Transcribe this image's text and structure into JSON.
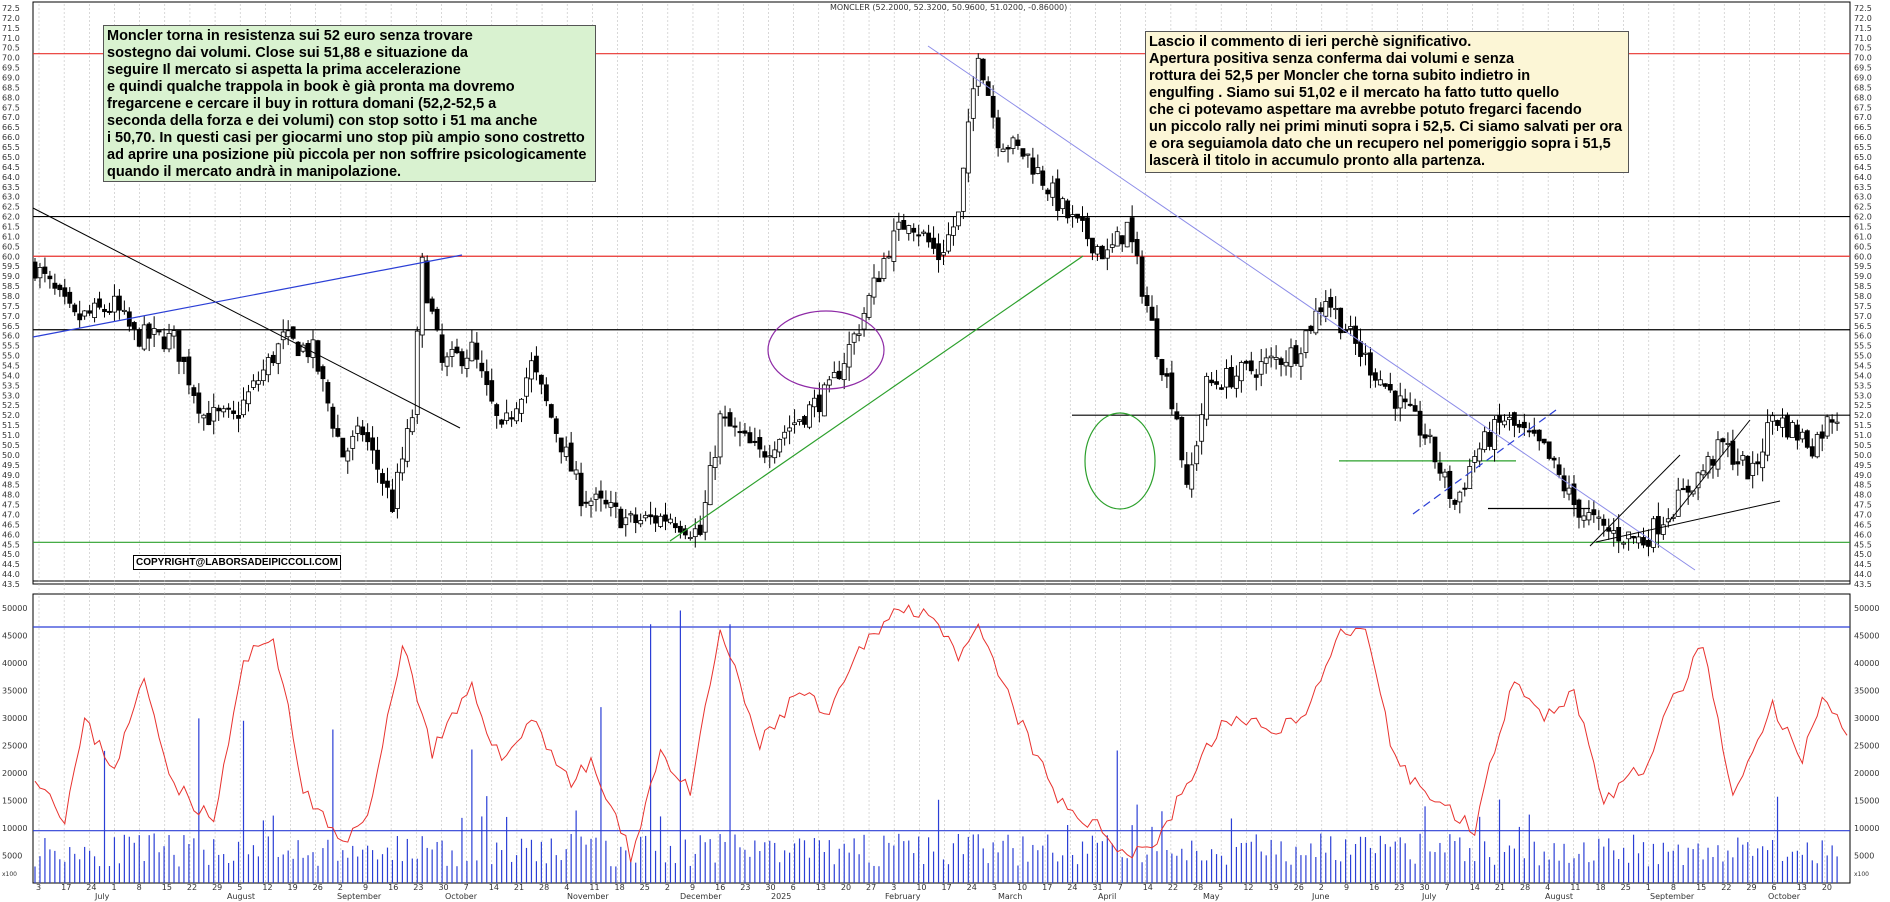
{
  "chart_title": "MONCLER (52.2000, 52.3200, 50.9600, 51.0200, -0.86000)",
  "copyright": "COPYRIGHT@LABORSADEIPICCOLI.COM",
  "note_left": [
    "Moncler torna in resistenza sui 52 euro senza trovare",
    "sostegno dai volumi. Close sui 51,88 e situazione da",
    "seguire Il mercato si aspetta la prima accelerazione",
    "e quindi qualche trappola in book è già pronta ma dovremo",
    "fregarcene e cercare il buy in rottura domani (52,2-52,5 a",
    "seconda della forza e dei volumi) con stop sotto i 51 ma anche",
    "i 50,70. In questi casi per giocarmi uno stop più ampio sono costretto",
    "ad aprire una posizione più piccola per non soffrire psicologicamente",
    "quando il mercato andrà in manipolazione."
  ],
  "note_right": [
    "Lascio il commento di ieri perchè significativo.",
    "Apertura positiva senza conferma dai volumi e senza",
    "rottura dei 52,5 per Moncler che torna subito indietro in",
    "engulfing . Siamo sui 51,02 e il mercato ha fatto tutto quello",
    "che ci potevamo aspettare ma avrebbe potuto fregarci facendo",
    "un piccolo rally nei primi minuti sopra i 52,5. Ci siamo salvati per ora",
    "e ora seguiamola dato che un recupero nel pomeriggio sopra i 51,5",
    "lascerà il titolo in accumulo pronto alla partenza."
  ],
  "volume_corner_label": "x100",
  "colors": {
    "resistance": "#e8322e",
    "support": "#2ca02c",
    "trend_blue": "#2b3fd6",
    "trend_light": "#8c8ce8",
    "volume_bars": "#2b3fd6",
    "volume_ma": "#e8322e",
    "ellipse_purple": "#8e2aa6",
    "ellipse_green": "#2ca02c",
    "grid": "#bfbfbf",
    "note_left_bg": "#d9f2d0",
    "note_right_bg": "#fcf6d6"
  },
  "chart_data": [
    {
      "type": "candlestick",
      "title": "MONCLER (52.2000, 52.3200, 50.9600, 51.0200, -0.86000)",
      "ylim": [
        43.5,
        72.5
      ],
      "y_tick_step": 0.5,
      "x_day_ticks": [
        "3",
        "17",
        "24",
        "1",
        "8",
        "15",
        "22",
        "29",
        "5",
        "12",
        "19",
        "26",
        "2",
        "9",
        "16",
        "23",
        "30",
        "7",
        "14",
        "21",
        "28",
        "4",
        "11",
        "18",
        "25",
        "2",
        "9",
        "16",
        "23",
        "30",
        "6",
        "13",
        "20",
        "27",
        "3",
        "10",
        "17",
        "24",
        "3",
        "10",
        "17",
        "24",
        "31",
        "7",
        "14",
        "22",
        "28",
        "5",
        "12",
        "19",
        "26",
        "2",
        "9",
        "16",
        "23",
        "30",
        "7",
        "14",
        "21",
        "28",
        "4",
        "11",
        "18",
        "25",
        "1",
        "8",
        "15",
        "22",
        "29",
        "6",
        "13",
        "20"
      ],
      "x_month_labels": [
        "July",
        "August",
        "September",
        "October",
        "November",
        "December",
        "2025",
        "February",
        "March",
        "April",
        "May",
        "June",
        "July",
        "August",
        "September",
        "October"
      ],
      "horizontal_levels": [
        {
          "price": 70.2,
          "kind": "resistance"
        },
        {
          "price": 62.0,
          "kind": "resistance-black"
        },
        {
          "price": 60.0,
          "kind": "resistance"
        },
        {
          "price": 56.3,
          "kind": "level-black"
        },
        {
          "price": 52.0,
          "kind": "level-black"
        },
        {
          "price": 49.7,
          "kind": "support-green"
        },
        {
          "price": 47.3,
          "kind": "level-black"
        },
        {
          "price": 45.6,
          "kind": "support"
        }
      ],
      "anchors": [
        [
          0,
          59.5
        ],
        [
          8,
          56.8
        ],
        [
          16,
          57.5
        ],
        [
          20,
          56.0
        ],
        [
          28,
          55.8
        ],
        [
          34,
          52.0
        ],
        [
          40,
          51.8
        ],
        [
          50,
          55.8
        ],
        [
          56,
          55.2
        ],
        [
          62,
          50.0
        ],
        [
          66,
          51.2
        ],
        [
          72,
          47.5
        ],
        [
          76,
          52.0
        ],
        [
          78,
          59.5
        ],
        [
          82,
          54.5
        ],
        [
          88,
          55.3
        ],
        [
          94,
          51.0
        ],
        [
          100,
          54.5
        ],
        [
          110,
          48.0
        ],
        [
          120,
          46.6
        ],
        [
          128,
          46.9
        ],
        [
          134,
          46.0
        ],
        [
          138,
          51.8
        ],
        [
          146,
          50.0
        ],
        [
          150,
          51.0
        ],
        [
          160,
          53.2
        ],
        [
          166,
          56.5
        ],
        [
          172,
          60.5
        ],
        [
          176,
          62.0
        ],
        [
          182,
          60.0
        ],
        [
          186,
          62.0
        ],
        [
          190,
          70.5
        ],
        [
          194,
          66.0
        ],
        [
          200,
          65.0
        ],
        [
          208,
          62.0
        ],
        [
          216,
          60.0
        ],
        [
          220,
          61.5
        ],
        [
          226,
          55.5
        ],
        [
          230,
          52.0
        ],
        [
          232,
          48.0
        ],
        [
          236,
          53.5
        ],
        [
          244,
          54.2
        ],
        [
          254,
          55.2
        ],
        [
          260,
          58.0
        ],
        [
          266,
          55.5
        ],
        [
          272,
          53.5
        ],
        [
          280,
          51.0
        ],
        [
          286,
          47.5
        ],
        [
          290,
          50.0
        ],
        [
          296,
          51.8
        ],
        [
          304,
          50.2
        ],
        [
          310,
          47.5
        ],
        [
          316,
          46.2
        ],
        [
          324,
          45.7
        ],
        [
          332,
          48.0
        ],
        [
          340,
          50.5
        ],
        [
          346,
          49.0
        ],
        [
          350,
          52.0
        ],
        [
          358,
          50.5
        ],
        [
          362,
          52.0
        ]
      ]
    },
    {
      "type": "bar+line",
      "title": "",
      "series": [
        {
          "name": "",
          "kind": "volume bars"
        },
        {
          "name": "",
          "kind": "volume moving average"
        }
      ],
      "ylim": [
        0,
        52500
      ],
      "y_ticks": [
        5000,
        10000,
        15000,
        20000,
        25000,
        30000,
        35000,
        40000,
        45000,
        50000
      ],
      "horizontal_levels": [
        46500,
        9500
      ],
      "ma_anchors": [
        [
          0,
          20000
        ],
        [
          6,
          12000
        ],
        [
          10,
          29000
        ],
        [
          16,
          21000
        ],
        [
          22,
          37000
        ],
        [
          28,
          18000
        ],
        [
          36,
          11000
        ],
        [
          42,
          40000
        ],
        [
          48,
          45000
        ],
        [
          54,
          17000
        ],
        [
          62,
          6500
        ],
        [
          68,
          15000
        ],
        [
          74,
          44000
        ],
        [
          80,
          24000
        ],
        [
          88,
          35000
        ],
        [
          94,
          22000
        ],
        [
          100,
          30000
        ],
        [
          108,
          18000
        ],
        [
          112,
          22000
        ],
        [
          120,
          5000
        ],
        [
          126,
          24000
        ],
        [
          132,
          16000
        ],
        [
          138,
          46000
        ],
        [
          146,
          25000
        ],
        [
          154,
          35000
        ],
        [
          160,
          30000
        ],
        [
          166,
          42000
        ],
        [
          172,
          49000
        ],
        [
          180,
          50000
        ],
        [
          186,
          40000
        ],
        [
          190,
          46000
        ],
        [
          198,
          30000
        ],
        [
          206,
          15000
        ],
        [
          214,
          10000
        ],
        [
          220,
          5500
        ],
        [
          226,
          7500
        ],
        [
          232,
          18000
        ],
        [
          240,
          30000
        ],
        [
          248,
          28000
        ],
        [
          256,
          30000
        ],
        [
          262,
          45000
        ],
        [
          268,
          45000
        ],
        [
          274,
          22000
        ],
        [
          282,
          15000
        ],
        [
          290,
          10000
        ],
        [
          298,
          38000
        ],
        [
          304,
          30000
        ],
        [
          310,
          35000
        ],
        [
          316,
          15000
        ],
        [
          324,
          21000
        ],
        [
          330,
          33000
        ],
        [
          336,
          43000
        ],
        [
          342,
          15000
        ],
        [
          350,
          32000
        ],
        [
          356,
          22000
        ],
        [
          360,
          35000
        ],
        [
          364,
          28000
        ]
      ]
    }
  ]
}
